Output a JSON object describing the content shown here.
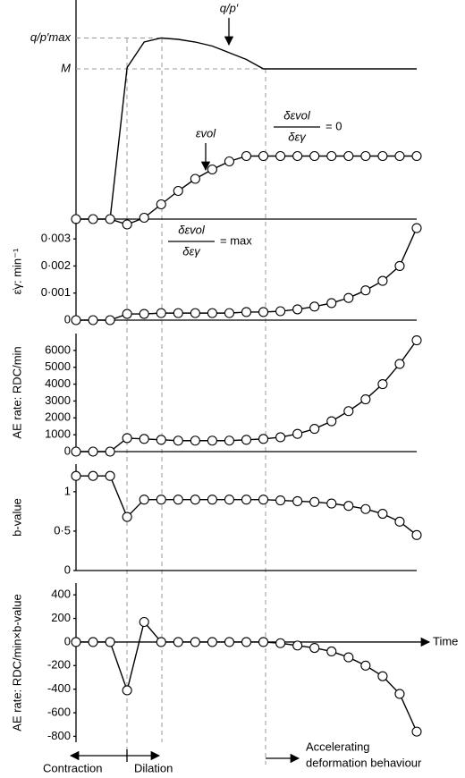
{
  "chart_data": [
    {
      "type": "line",
      "categories": [
        null,
        null,
        null,
        null,
        null,
        null,
        null,
        null,
        null,
        null,
        null,
        null,
        null,
        null,
        null,
        null,
        null,
        null,
        null,
        null,
        null
      ],
      "ylim": [
        0,
        1.6
      ],
      "yticks": [
        {
          "value": 1.35,
          "label": "q/p′max"
        },
        {
          "value": 1.12,
          "label": "M"
        }
      ],
      "series": [
        {
          "name": "q/p′",
          "color": "#000000",
          "markers": false,
          "values": [
            null,
            null,
            0,
            1.13,
            1.32,
            1.35,
            1.34,
            1.32,
            1.29,
            1.24,
            1.19,
            1.12,
            1.12,
            1.12,
            1.12,
            1.12,
            1.12,
            1.12,
            1.12,
            1.12,
            1.12
          ]
        },
        {
          "name": "εvol",
          "color": "#000000",
          "markers": true,
          "values": [
            0,
            0,
            0,
            -0.04,
            0.01,
            0.11,
            0.21,
            0.3,
            0.37,
            0.43,
            0.47,
            0.47,
            0.47,
            0.47,
            0.47,
            0.47,
            0.47,
            0.47,
            0.47,
            0.47,
            0.47
          ]
        }
      ],
      "annotations": [
        "δεvol",
        "δεγ",
        "= 0"
      ]
    },
    {
      "type": "line",
      "categories": [
        null,
        null,
        null,
        null,
        null,
        null,
        null,
        null,
        null,
        null,
        null,
        null,
        null,
        null,
        null,
        null,
        null,
        null,
        null,
        null,
        null
      ],
      "ylabel": "ε̇γ: min⁻¹",
      "ylim": [
        0,
        0.0036
      ],
      "yticks": [
        0,
        {
          "value": 0.001,
          "label": "0·001"
        },
        {
          "value": 0.002,
          "label": "0·002"
        },
        {
          "value": 0.003,
          "label": "0·003"
        }
      ],
      "series": [
        {
          "name": null,
          "color": "#000000",
          "markers": true,
          "values": [
            0,
            0,
            0,
            0.00023,
            0.00023,
            0.00026,
            0.00026,
            0.00026,
            0.00026,
            0.00026,
            0.0003,
            0.0003,
            0.00033,
            0.0004,
            0.0005,
            0.00063,
            0.00082,
            0.0011,
            0.00145,
            0.002,
            0.0034
          ]
        }
      ],
      "annotations": [
        "δεvol",
        "δεγ",
        "= max"
      ]
    },
    {
      "type": "line",
      "categories": [
        null,
        null,
        null,
        null,
        null,
        null,
        null,
        null,
        null,
        null,
        null,
        null,
        null,
        null,
        null,
        null,
        null,
        null,
        null,
        null,
        null
      ],
      "ylabel": "AE rate: RDC/min",
      "ylim": [
        0,
        7000
      ],
      "yticks": [
        0,
        1000,
        2000,
        3000,
        4000,
        5000,
        6000
      ],
      "series": [
        {
          "name": null,
          "color": "#000000",
          "markers": true,
          "values": [
            0,
            0,
            0,
            800,
            750,
            700,
            650,
            650,
            650,
            650,
            700,
            750,
            850,
            1050,
            1350,
            1800,
            2400,
            3100,
            4000,
            5200,
            6600
          ]
        }
      ]
    },
    {
      "type": "line",
      "categories": [
        null,
        null,
        null,
        null,
        null,
        null,
        null,
        null,
        null,
        null,
        null,
        null,
        null,
        null,
        null,
        null,
        null,
        null,
        null,
        null,
        null
      ],
      "ylabel": "b-value",
      "ylim": [
        0,
        1.35
      ],
      "yticks": [
        0,
        {
          "value": 0.5,
          "label": "0·5"
        },
        1
      ],
      "series": [
        {
          "name": null,
          "color": "#000000",
          "markers": true,
          "values": [
            1.2,
            1.2,
            1.2,
            0.68,
            0.9,
            0.9,
            0.9,
            0.9,
            0.9,
            0.9,
            0.9,
            0.9,
            0.89,
            0.88,
            0.87,
            0.85,
            0.82,
            0.78,
            0.72,
            0.62,
            0.45
          ]
        }
      ]
    },
    {
      "type": "line",
      "categories": [
        null,
        null,
        null,
        null,
        null,
        null,
        null,
        null,
        null,
        null,
        null,
        null,
        null,
        null,
        null,
        null,
        null,
        null,
        null,
        null,
        null
      ],
      "ylabel": "AE rate: RDC/min×b-value",
      "xlabel": "Time",
      "ylim": [
        -850,
        500
      ],
      "yticks": [
        -800,
        -600,
        -400,
        -200,
        0,
        200,
        400
      ],
      "series": [
        {
          "name": null,
          "color": "#000000",
          "markers": true,
          "values": [
            0,
            0,
            0,
            -410,
            170,
            0,
            0,
            0,
            0,
            0,
            0,
            0,
            -10,
            -30,
            -50,
            -80,
            -130,
            -200,
            -290,
            -440,
            -760
          ]
        }
      ]
    }
  ],
  "phase_labels": {
    "contraction": "Contraction",
    "dilation": "Dilation",
    "accelerating": [
      "Accelerating",
      "deformation behaviour"
    ]
  }
}
